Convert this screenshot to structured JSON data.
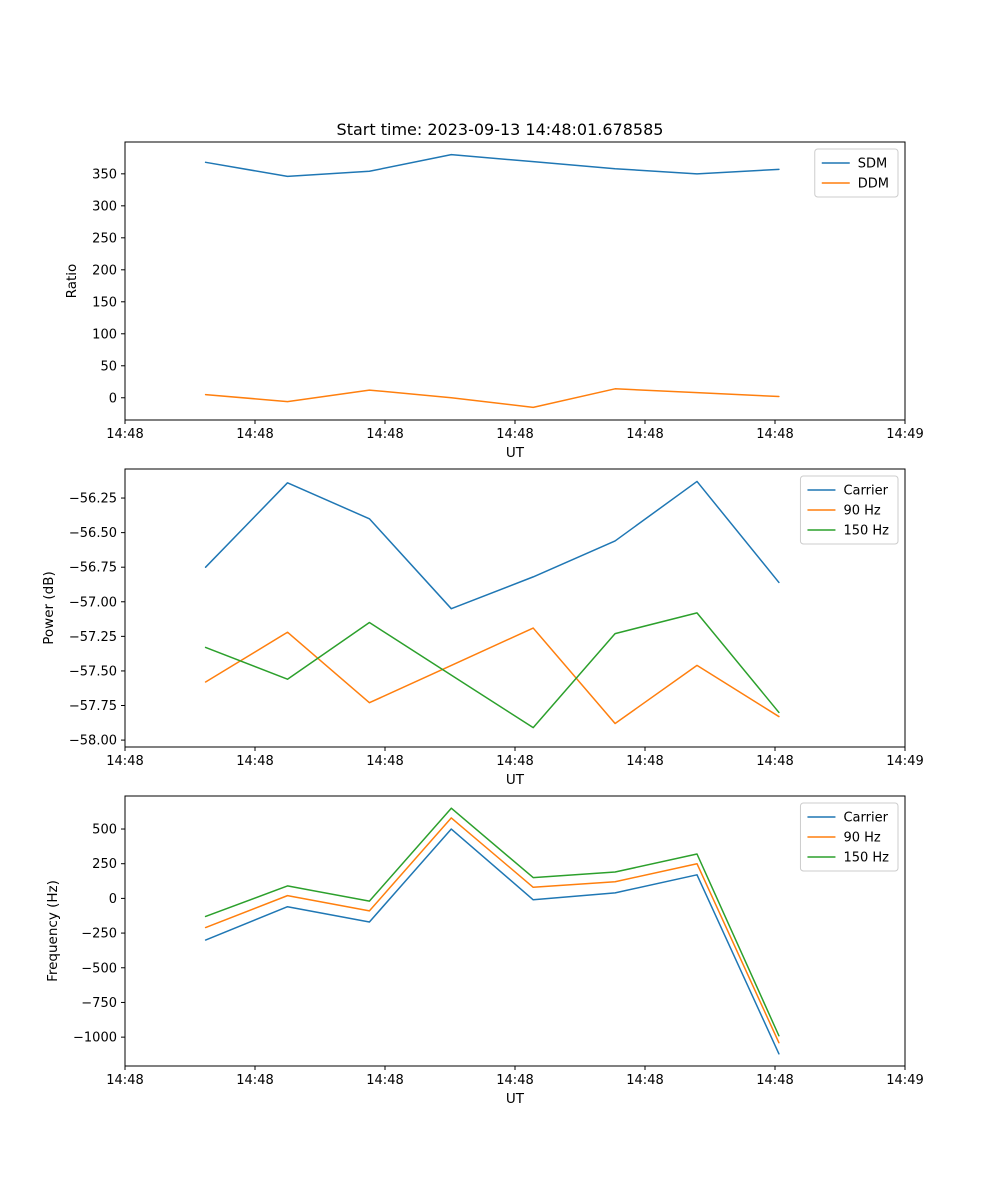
{
  "figure": {
    "background": "#ffffff"
  },
  "palette": {
    "blue": "#1f77b4",
    "orange": "#ff7f0e",
    "green": "#2ca02c"
  },
  "chart_data": [
    {
      "type": "line",
      "title": "Start time: 2023-09-13 14:48:01.678585",
      "xlabel": "UT",
      "ylabel": "Ratio",
      "x_seconds": [
        6.2,
        12.5,
        18.8,
        25.1,
        31.4,
        37.7,
        44.0,
        50.3
      ],
      "xlim": [
        0,
        60
      ],
      "ylim": [
        -34.75,
        399.75
      ],
      "grid": false,
      "legend_position": "upper right",
      "xticks": {
        "values": [
          0,
          10,
          20,
          30,
          40,
          50,
          60
        ],
        "labels": [
          "14:48",
          "14:48",
          "14:48",
          "14:48",
          "14:48",
          "14:48",
          "14:49"
        ]
      },
      "yticks": {
        "values": [
          0,
          50,
          100,
          150,
          200,
          250,
          300,
          350
        ],
        "labels": [
          "0",
          "50",
          "100",
          "150",
          "200",
          "250",
          "300",
          "350"
        ]
      },
      "series": [
        {
          "name": "SDM",
          "color": "#1f77b4",
          "values": [
            368,
            346,
            354,
            380,
            369,
            358,
            350,
            357
          ]
        },
        {
          "name": "DDM",
          "color": "#ff7f0e",
          "values": [
            5,
            -6,
            12,
            0,
            -15,
            14,
            8,
            2
          ]
        }
      ]
    },
    {
      "type": "line",
      "title": "",
      "xlabel": "UT",
      "ylabel": "Power (dB)",
      "x_seconds": [
        6.2,
        12.5,
        18.8,
        25.1,
        31.4,
        37.7,
        44.0,
        50.3
      ],
      "xlim": [
        0,
        60
      ],
      "ylim": [
        -58.05,
        -56.04
      ],
      "grid": false,
      "legend_position": "upper right",
      "xticks": {
        "values": [
          0,
          10,
          20,
          30,
          40,
          50,
          60
        ],
        "labels": [
          "14:48",
          "14:48",
          "14:48",
          "14:48",
          "14:48",
          "14:48",
          "14:49"
        ]
      },
      "yticks": {
        "values": [
          -58.0,
          -57.75,
          -57.5,
          -57.25,
          -57.0,
          -56.75,
          -56.5,
          -56.25
        ],
        "labels": [
          "−58.00",
          "−57.75",
          "−57.50",
          "−57.25",
          "−57.00",
          "−56.75",
          "−56.50",
          "−56.25"
        ]
      },
      "series": [
        {
          "name": "Carrier",
          "color": "#1f77b4",
          "values": [
            -56.75,
            -56.14,
            -56.4,
            -57.05,
            -56.82,
            -56.56,
            -56.13,
            -56.86
          ]
        },
        {
          "name": "90 Hz",
          "color": "#ff7f0e",
          "values": [
            -57.58,
            -57.22,
            -57.73,
            -57.46,
            -57.19,
            -57.88,
            -57.46,
            -57.83
          ]
        },
        {
          "name": "150 Hz",
          "color": "#2ca02c",
          "values": [
            -57.33,
            -57.56,
            -57.15,
            -57.53,
            -57.91,
            -57.23,
            -57.08,
            -57.8
          ]
        }
      ]
    },
    {
      "type": "line",
      "title": "",
      "xlabel": "UT",
      "ylabel": "Frequency (Hz)",
      "x_seconds": [
        6.2,
        12.5,
        18.8,
        25.1,
        31.4,
        37.7,
        44.0,
        50.3
      ],
      "xlim": [
        0,
        60
      ],
      "ylim": [
        -1208,
        738
      ],
      "grid": false,
      "legend_position": "upper right",
      "xticks": {
        "values": [
          0,
          10,
          20,
          30,
          40,
          50,
          60
        ],
        "labels": [
          "14:48",
          "14:48",
          "14:48",
          "14:48",
          "14:48",
          "14:48",
          "14:49"
        ]
      },
      "yticks": {
        "values": [
          -1000,
          -750,
          -500,
          -250,
          0,
          250,
          500
        ],
        "labels": [
          "−1000",
          "−750",
          "−500",
          "−250",
          "0",
          "250",
          "500"
        ]
      },
      "series": [
        {
          "name": "Carrier",
          "color": "#1f77b4",
          "values": [
            -300,
            -60,
            -170,
            500,
            -10,
            40,
            170,
            -1120
          ]
        },
        {
          "name": "90 Hz",
          "color": "#ff7f0e",
          "values": [
            -210,
            20,
            -90,
            580,
            80,
            120,
            250,
            -1040
          ]
        },
        {
          "name": "150 Hz",
          "color": "#2ca02c",
          "values": [
            -130,
            90,
            -20,
            650,
            150,
            190,
            320,
            -990
          ]
        }
      ]
    }
  ]
}
